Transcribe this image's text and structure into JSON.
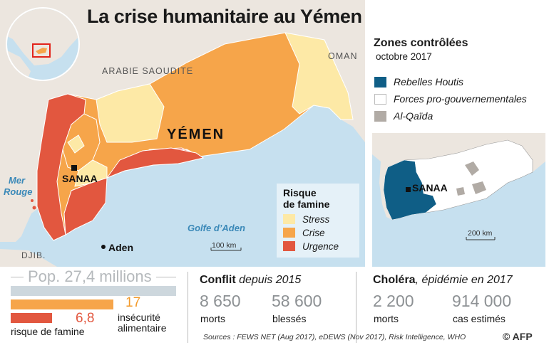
{
  "title": "La crise humanitaire au Yémen",
  "colors": {
    "sea": "#c6e0ef",
    "land": "#ece6df",
    "stress": "#fde9a6",
    "crise": "#f6a54a",
    "urgence": "#e2573f",
    "houthis": "#0f5e86",
    "alqaida": "#b1aba5",
    "pop_bar": "#cdd7dd",
    "grey_text": "#8d9194",
    "orange_text": "#f39a2b",
    "red_text": "#e2573f"
  },
  "map_labels": {
    "arabie": "ARABIE SAOUDITE",
    "oman": "OMAN",
    "yemen": "YÉMEN",
    "sanaa": "SANAA",
    "mer_rouge_1": "Mer",
    "mer_rouge_2": "Rouge",
    "golfe": "Golfe d’Aden",
    "aden": "Aden",
    "djib": "DJIB.",
    "scale_main": "100 km"
  },
  "famine_legend": {
    "title_1": "Risque",
    "title_2": "de famine",
    "items": [
      {
        "label": "Stress",
        "color": "#fde9a6"
      },
      {
        "label": "Crise",
        "color": "#f6a54a"
      },
      {
        "label": "Urgence",
        "color": "#e2573f"
      }
    ]
  },
  "zones": {
    "title": "Zones contrôlées",
    "subtitle": "octobre 2017",
    "items": [
      {
        "label": "Rebelles Houtis",
        "color": "#0f5e86"
      },
      {
        "label": "Forces pro-gouvernementales",
        "color": "#ffffff"
      },
      {
        "label": "Al-Qaïda",
        "color": "#b1aba5"
      }
    ],
    "inset_sanaa": "SANAA",
    "inset_scale": "200 km"
  },
  "population": {
    "label": "Pop. 27,4 millions",
    "total_millions": 27.4,
    "insecurite_value": "17",
    "insecurite_millions": 17,
    "insecurite_label_1": "insécurité",
    "insecurite_label_2": "alimentaire",
    "famine_value": "6,8",
    "famine_millions": 6.8,
    "famine_label": "risque de famine"
  },
  "conflit": {
    "heading_bold": "Conflit",
    "heading_rest": " depuis 2015",
    "morts_value": "8 650",
    "morts_label": "morts",
    "blesses_value": "58 600",
    "blesses_label": "blessés"
  },
  "cholera": {
    "heading_bold": "Choléra",
    "heading_rest": ", épidémie en 2017",
    "morts_value": "2 200",
    "morts_label": "morts",
    "cas_value": "914 000",
    "cas_label": "cas estimés"
  },
  "sources": "Sources : FEWS NET (Aug 2017), eDEWS (Nov 2017), Risk Intelligence, WHO",
  "credit": "© AFP"
}
